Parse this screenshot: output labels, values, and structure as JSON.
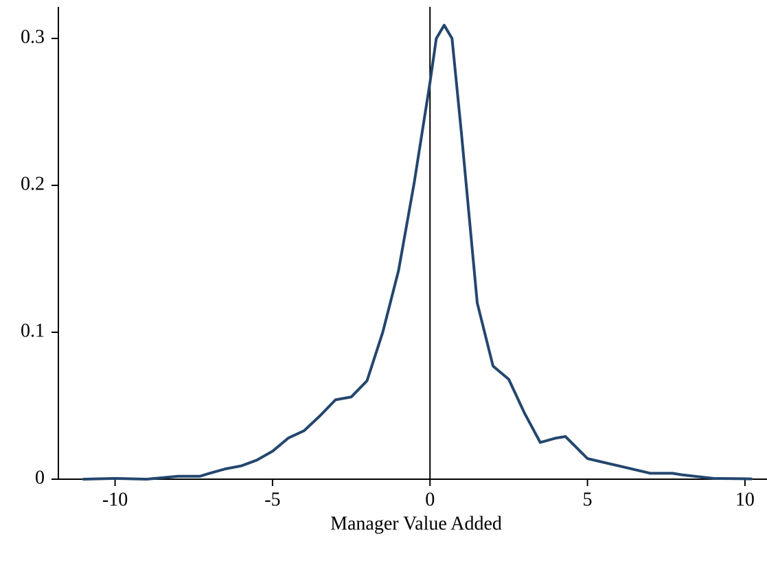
{
  "chart_data": {
    "type": "line",
    "x_label": "Manager Value Added",
    "x": [
      -11.0,
      -10.0,
      -9.0,
      -8.0,
      -7.3,
      -7.0,
      -6.5,
      -6.0,
      -5.5,
      -5.0,
      -4.5,
      -4.0,
      -3.5,
      -3.0,
      -2.5,
      -2.0,
      -1.5,
      -1.0,
      -0.5,
      0.0,
      0.2,
      0.45,
      0.7,
      1.0,
      1.5,
      2.0,
      2.5,
      3.0,
      3.5,
      4.0,
      4.3,
      5.0,
      6.0,
      7.0,
      7.7,
      8.0,
      9.0,
      10.0,
      10.2
    ],
    "series": [
      {
        "color": "#23466e",
        "values": [
          0,
          0.0005,
          0,
          0.002,
          0.002,
          0.004,
          0.007,
          0.009,
          0.013,
          0.019,
          0.028,
          0.033,
          0.043,
          0.054,
          0.056,
          0.067,
          0.1,
          0.142,
          0.202,
          0.27,
          0.3,
          0.309,
          0.3,
          0.235,
          0.12,
          0.077,
          0.068,
          0.045,
          0.025,
          0.028,
          0.029,
          0.014,
          0.009,
          0.004,
          0.004,
          0.003,
          0.0005,
          0.0003,
          0.0002
        ]
      }
    ],
    "xlim": [
      -11.8,
      10.7
    ],
    "ylim": [
      0,
      0.3215
    ],
    "xticks": [
      -10,
      -5,
      0,
      5,
      10
    ],
    "yticks": [
      0,
      0.1,
      0.2,
      0.3
    ],
    "vline": 0
  }
}
